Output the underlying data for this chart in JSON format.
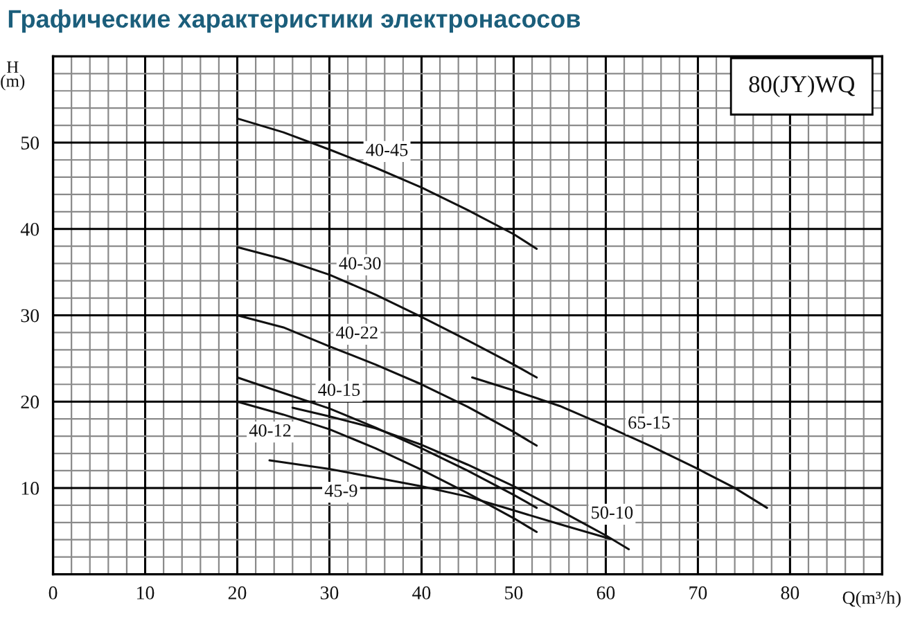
{
  "chart_data": {
    "type": "line",
    "title": "Графические характеристики электронасосов",
    "xlabel": "Q(m³/h)",
    "ylabel": "H\n(m)",
    "annotations": [
      "80(JY)WQ"
    ],
    "xlim": [
      0,
      90
    ],
    "ylim": [
      0,
      60
    ],
    "xticks": [
      0,
      10,
      20,
      30,
      40,
      50,
      60,
      70,
      80
    ],
    "yticks": [
      10,
      20,
      30,
      40,
      50
    ],
    "grid": true,
    "series": [
      {
        "name": "40-45",
        "color": "#111111",
        "x": [
          20,
          25,
          30,
          35,
          40,
          45,
          50,
          52.5
        ],
        "values": [
          52.8,
          51.2,
          49.2,
          47.1,
          44.8,
          42.2,
          39.4,
          37.7
        ]
      },
      {
        "name": "40-30",
        "color": "#111111",
        "x": [
          20,
          25,
          30,
          35,
          40,
          45,
          50,
          52.5
        ],
        "values": [
          37.9,
          36.5,
          34.7,
          32.4,
          29.8,
          27.1,
          24.3,
          22.8
        ]
      },
      {
        "name": "40-22",
        "color": "#111111",
        "x": [
          20,
          25,
          30,
          35,
          40,
          45,
          50,
          52.5
        ],
        "values": [
          30.0,
          28.6,
          26.4,
          24.3,
          22.0,
          19.4,
          16.5,
          14.9
        ]
      },
      {
        "name": "40-15",
        "color": "#111111",
        "x": [
          20,
          25,
          30,
          35,
          40,
          45,
          50,
          52.5
        ],
        "values": [
          22.8,
          21.0,
          19.2,
          17.0,
          14.6,
          12.0,
          9.2,
          7.7
        ]
      },
      {
        "name": "40-12",
        "color": "#111111",
        "x": [
          20,
          25,
          30,
          35,
          40,
          45,
          50,
          52.5
        ],
        "values": [
          20.0,
          18.5,
          16.8,
          14.6,
          12.1,
          9.4,
          6.5,
          4.9
        ]
      },
      {
        "name": "45-9",
        "color": "#111111",
        "x": [
          23.5,
          30,
          35,
          40,
          45,
          50,
          55,
          60.5
        ],
        "values": [
          13.2,
          12.2,
          11.2,
          10.2,
          9.0,
          7.4,
          5.8,
          4.1
        ]
      },
      {
        "name": "50-10",
        "color": "#111111",
        "x": [
          26,
          30,
          35,
          40,
          45,
          50,
          55,
          60,
          62.5
        ],
        "values": [
          19.3,
          18.3,
          16.9,
          15.0,
          12.7,
          10.2,
          7.4,
          4.5,
          2.9
        ]
      },
      {
        "name": "65-15",
        "color": "#111111",
        "x": [
          45.5,
          50,
          55,
          60,
          65,
          70,
          74,
          77.5
        ],
        "values": [
          22.8,
          21.3,
          19.5,
          17.2,
          14.8,
          12.2,
          10.0,
          7.7
        ]
      }
    ]
  }
}
